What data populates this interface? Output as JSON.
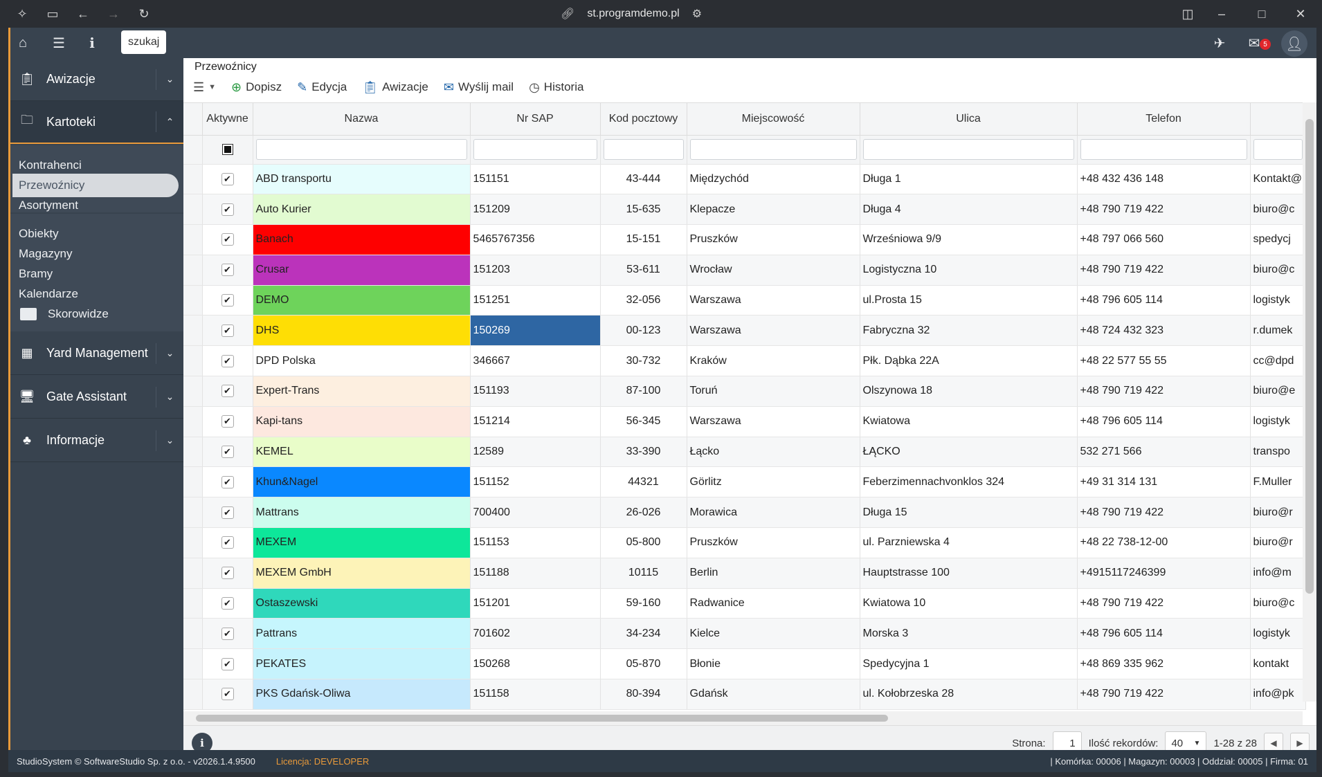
{
  "browser": {
    "url": "st.programdemo.pl"
  },
  "topbar": {
    "search_label": "szukaj",
    "mail_count": "5"
  },
  "sidebar": {
    "groups": [
      {
        "label": "Awizacje"
      },
      {
        "label": "Kartoteki"
      },
      {
        "label": "Yard Management"
      },
      {
        "label": "Gate Assistant"
      },
      {
        "label": "Informacje"
      }
    ],
    "items": [
      {
        "label": "Kontrahenci"
      },
      {
        "label": "Przewoźnicy"
      },
      {
        "label": "Asortyment"
      },
      {
        "label": "Obiekty"
      },
      {
        "label": "Magazyny"
      },
      {
        "label": "Bramy"
      },
      {
        "label": "Kalendarze"
      },
      {
        "label": "Skorowidze"
      }
    ]
  },
  "main": {
    "breadcrumb": "Przewoźnicy",
    "actions": [
      "Dopisz",
      "Edycja",
      "Awizacje",
      "Wyślij mail",
      "Historia"
    ]
  },
  "table": {
    "columns": [
      "Aktywne",
      "Nazwa",
      "Nr SAP",
      "Kod pocztowy",
      "Miejscowość",
      "Ulica",
      "Telefon",
      ""
    ],
    "rows": [
      {
        "name": "ABD transportu",
        "color": "#e6fdfd",
        "sap": "151151",
        "zip": "43-444",
        "city": "Międzychód",
        "street": "Długa 1",
        "phone": "+48 432 436 148",
        "mail": "Kontakt@"
      },
      {
        "name": "Auto Kurier",
        "color": "#e2fbd1",
        "sap": "151209",
        "zip": "15-635",
        "city": "Klepacze",
        "street": "Długa 4",
        "phone": "+48 790 719 422",
        "mail": "biuro@c"
      },
      {
        "name": "Banach",
        "color": "#fe0000",
        "sap": "5465767356",
        "zip": "15-151",
        "city": "Pruszków",
        "street": "Wrześniowa 9/9",
        "phone": "+48 797 066 560",
        "mail": "spedycj"
      },
      {
        "name": "Crusar",
        "color": "#bb33bb",
        "sap": "151203",
        "zip": "53-611",
        "city": "Wrocław",
        "street": "Logistyczna 10",
        "phone": "+48 790 719 422",
        "mail": "biuro@c"
      },
      {
        "name": "DEMO",
        "color": "#6ed35b",
        "sap": "151251",
        "zip": "32-056",
        "city": "Warszawa",
        "street": "ul.Prosta 15",
        "phone": "+48 796 605 114",
        "mail": "logistyk"
      },
      {
        "name": "DHS",
        "color": "#fede05",
        "sap": "150269",
        "zip": "00-123",
        "city": "Warszawa",
        "street": "Fabryczna 32",
        "phone": "+48 724 432 323",
        "mail": "r.dumek"
      },
      {
        "name": "DPD Polska",
        "color": "#ffffff",
        "sap": "346667",
        "zip": "30-732",
        "city": "Kraków",
        "street": "Płk. Dąbka 22A",
        "phone": "+48 22 577 55 55",
        "mail": "cc@dpd"
      },
      {
        "name": "Expert-Trans",
        "color": "#fdefe0",
        "sap": "151193",
        "zip": "87-100",
        "city": "Toruń",
        "street": "Olszynowa 18",
        "phone": "+48 790 719 422",
        "mail": "biuro@e"
      },
      {
        "name": "Kapi-tans",
        "color": "#fde8df",
        "sap": "151214",
        "zip": "56-345",
        "city": "Warszawa",
        "street": "Kwiatowa",
        "phone": "+48 796 605 114",
        "mail": "logistyk"
      },
      {
        "name": "KEMEL",
        "color": "#e9fdc9",
        "sap": "12589",
        "zip": "33-390",
        "city": "Łącko",
        "street": "ŁĄCKO",
        "phone": "532 271 566",
        "mail": "transpo"
      },
      {
        "name": "Khun&Nagel",
        "color": "#0a88ff",
        "sap": "151152",
        "zip": "44321",
        "city": "Görlitz",
        "street": "Feberzimennachvonklos 324",
        "phone": "+49 31 314 131",
        "mail": "F.Muller"
      },
      {
        "name": "Mattrans",
        "color": "#ccfdee",
        "sap": "700400",
        "zip": "26-026",
        "city": "Morawica",
        "street": "Długa 15",
        "phone": "+48 790 719 422",
        "mail": "biuro@r"
      },
      {
        "name": "MEXEM",
        "color": "#0de79a",
        "sap": "151153",
        "zip": "05-800",
        "city": "Pruszków",
        "street": "ul. Parzniewska 4",
        "phone": "+48 22 738-12-00",
        "mail": "biuro@r"
      },
      {
        "name": "MEXEM GmbH",
        "color": "#fdf3b8",
        "sap": "151188",
        "zip": "10115",
        "city": "Berlin",
        "street": "Hauptstrasse 100",
        "phone": "+4915117246399",
        "mail": "info@m"
      },
      {
        "name": "Ostaszewski",
        "color": "#2fd8bb",
        "sap": "151201",
        "zip": "59-160",
        "city": "Radwanice",
        "street": "Kwiatowa 10",
        "phone": "+48 790 719 422",
        "mail": "biuro@c"
      },
      {
        "name": "Pattrans",
        "color": "#c6f6fd",
        "sap": "701602",
        "zip": "34-234",
        "city": "Kielce",
        "street": "Morska 3",
        "phone": "+48 796 605 114",
        "mail": "logistyk"
      },
      {
        "name": "PEKATES",
        "color": "#c6f3fd",
        "sap": "150268",
        "zip": "05-870",
        "city": "Błonie",
        "street": "Spedycyjna 1",
        "phone": "+48 869 335 962",
        "mail": "kontakt"
      },
      {
        "name": "PKS Gdańsk-Oliwa",
        "color": "#c6e9fd",
        "sap": "151158",
        "zip": "80-394",
        "city": "Gdańsk",
        "street": "ul. Kołobrzeska 28",
        "phone": "+48 790 719 422",
        "mail": "info@pk"
      }
    ],
    "selected_cell_color": "#2e66a3"
  },
  "footer": {
    "page_label": "Strona:",
    "page_value": "1",
    "records_label": "Ilość rekordów:",
    "records_value": "40",
    "range": "1-28 z 28"
  },
  "status": {
    "left": "StudioSystem © SoftwareStudio Sp. z o.o. - v2026.1.4.9500",
    "license": "Licencja: DEVELOPER",
    "right": "| Komórka: 00006 | Magazyn: 00003 | Oddział: 00005 | Firma: 01"
  }
}
